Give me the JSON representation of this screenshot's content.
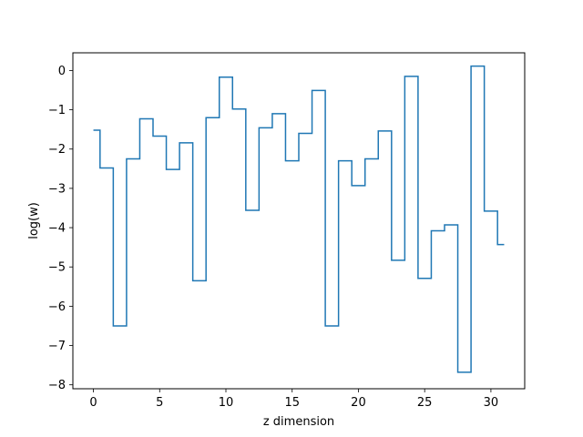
{
  "chart_data": {
    "type": "line",
    "drawstyle": "steps-mid",
    "title": "",
    "xlabel": "z dimension",
    "ylabel": "log(w)",
    "xlim": [
      -1.55,
      32.55
    ],
    "ylim": [
      -8.1,
      0.45
    ],
    "xticks": [
      0,
      5,
      10,
      15,
      20,
      25,
      30
    ],
    "xtick_labels": [
      "0",
      "5",
      "10",
      "15",
      "20",
      "25",
      "30"
    ],
    "yticks": [
      0,
      -1,
      -2,
      -3,
      -4,
      -5,
      -6,
      -7,
      -8
    ],
    "ytick_labels": [
      "0",
      "−1",
      "−2",
      "−3",
      "−4",
      "−5",
      "−6",
      "−7",
      "−8"
    ],
    "grid": false,
    "legend": "none",
    "series": [
      {
        "color": "#1f77b4",
        "x": [
          0,
          1,
          2,
          3,
          4,
          5,
          6,
          7,
          8,
          9,
          10,
          11,
          12,
          13,
          14,
          15,
          16,
          17,
          18,
          19,
          20,
          21,
          22,
          23,
          24,
          25,
          26,
          27,
          28,
          29,
          30,
          31
        ],
        "y": [
          -1.52,
          -2.48,
          -6.5,
          -2.25,
          -1.23,
          -1.67,
          -2.52,
          -1.84,
          -5.35,
          -1.2,
          -0.17,
          -0.98,
          -3.56,
          -1.46,
          -1.1,
          -2.3,
          -1.6,
          -0.51,
          -6.5,
          -2.3,
          -2.93,
          -2.25,
          -1.54,
          -4.83,
          -0.15,
          -5.29,
          -4.08,
          -3.93,
          -7.68,
          0.11,
          -3.58,
          -4.43
        ]
      }
    ]
  }
}
